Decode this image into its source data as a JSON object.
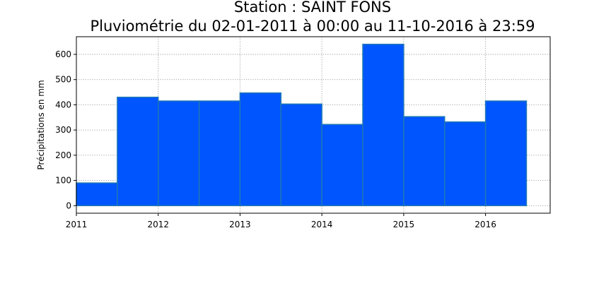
{
  "chart_data": {
    "type": "bar",
    "title": "Station : SAINT FONS",
    "subtitle": "Pluviométrie du 02-01-2011 à 00:00 au 11-10-2016 à 23:59",
    "xlabel": "",
    "ylabel": "Précipitations en mm",
    "x_ticks": [
      2011,
      2012,
      2013,
      2014,
      2015,
      2016
    ],
    "y_ticks": [
      0,
      100,
      200,
      300,
      400,
      500,
      600
    ],
    "xlim": [
      2011.0,
      2016.79
    ],
    "ylim": [
      -30,
      670
    ],
    "grid": true,
    "bar_color": "#0055ff",
    "bar_edge_color": "#1f77b4",
    "bars": [
      {
        "start": 2011.0,
        "end": 2011.5,
        "value": 90
      },
      {
        "start": 2011.5,
        "end": 2012.0,
        "value": 430
      },
      {
        "start": 2012.0,
        "end": 2012.5,
        "value": 415
      },
      {
        "start": 2012.5,
        "end": 2013.0,
        "value": 415
      },
      {
        "start": 2013.0,
        "end": 2013.5,
        "value": 447
      },
      {
        "start": 2013.5,
        "end": 2014.0,
        "value": 403
      },
      {
        "start": 2014.0,
        "end": 2014.5,
        "value": 322
      },
      {
        "start": 2014.5,
        "end": 2015.0,
        "value": 640
      },
      {
        "start": 2015.0,
        "end": 2015.5,
        "value": 353
      },
      {
        "start": 2015.5,
        "end": 2016.0,
        "value": 332
      },
      {
        "start": 2016.0,
        "end": 2016.5,
        "value": 415
      }
    ]
  }
}
